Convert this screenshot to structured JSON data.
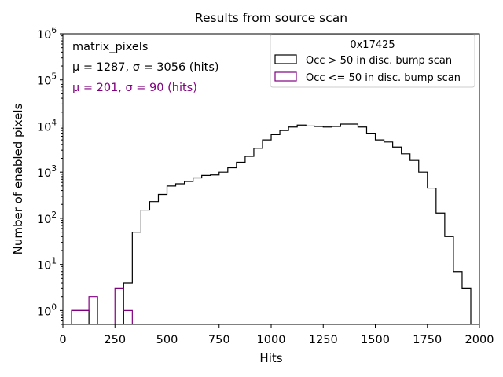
{
  "chart_data": {
    "type": "histogram",
    "title": "Results from source scan",
    "xlabel": "Hits",
    "ylabel": "Number of enabled pixels",
    "xlim": [
      0,
      2000
    ],
    "ylim_log10": [
      -0.3,
      6.0
    ],
    "yscale": "log",
    "xticks": [
      "0",
      "250",
      "500",
      "750",
      "1000",
      "1250",
      "1500",
      "1750",
      "2000"
    ],
    "xtick_values": [
      0,
      250,
      500,
      750,
      1000,
      1250,
      1500,
      1750,
      2000
    ],
    "ytick_exponents": [
      0,
      1,
      2,
      3,
      4,
      5,
      6
    ],
    "bin_width": 41.67,
    "legend": {
      "title": "0x17425",
      "entries": [
        "Occ > 50 in disc. bump scan",
        "Occ <= 50 in disc. bump scan"
      ],
      "location": "upper right"
    },
    "annotations": {
      "name": "matrix_pixels",
      "line1_text": "μ = 1287, σ = 3056 (hits)",
      "line1_color": "#000000",
      "line2_text": "μ = 201, σ = 90 (hits)",
      "line2_color": "#800080"
    },
    "series": [
      {
        "name": "Occ > 50 in disc. bump scan",
        "color": "#000000",
        "bin_values": [
          0,
          1,
          1,
          0,
          0,
          0,
          0,
          4,
          50,
          150,
          230,
          330,
          500,
          560,
          630,
          750,
          850,
          870,
          1000,
          1250,
          1650,
          2200,
          3300,
          5000,
          6500,
          8000,
          9500,
          10500,
          10000,
          9800,
          9500,
          9800,
          11000,
          11000,
          9500,
          7000,
          5000,
          4500,
          3500,
          2500,
          1800,
          1000,
          450,
          130,
          40,
          7,
          3,
          0
        ]
      },
      {
        "name": "Occ <= 50 in disc. bump scan",
        "color": "#800080",
        "bin_values": [
          0,
          1,
          1,
          2,
          0,
          0,
          3,
          1,
          0,
          0,
          0,
          0,
          0,
          0,
          0,
          0,
          0,
          0,
          0,
          0,
          0,
          0,
          0,
          0,
          0,
          0,
          0,
          0,
          0,
          0,
          0,
          0,
          0,
          0,
          0,
          0,
          0,
          0,
          0,
          0,
          0,
          0,
          0,
          0,
          0,
          0,
          0,
          0
        ]
      }
    ]
  }
}
